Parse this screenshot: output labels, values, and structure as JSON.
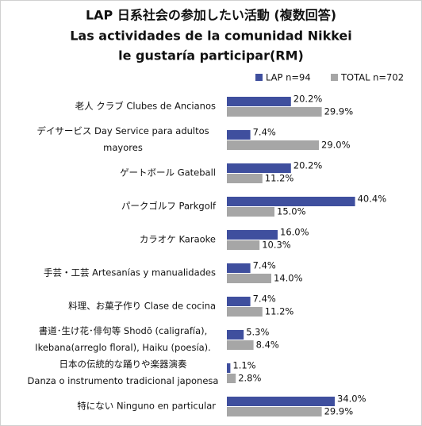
{
  "chart_data": {
    "type": "hbar",
    "title": "LAP 日系社会の参加したい活動 (複数回答)",
    "subtitle": [
      "Las actividades de la comunidad Nikkei",
      "le gustaría participar(RM)"
    ],
    "categories": [
      [
        "老人 クラブ Clubes de Ancianos"
      ],
      [
        "デイサービス Day Service para adultos",
        "mayores"
      ],
      [
        "ゲートボール Gateball"
      ],
      [
        "パークゴルフ Parkgolf"
      ],
      [
        "カラオケ Karaoke"
      ],
      [
        "手芸・工芸 Artesanías y manualidades"
      ],
      [
        "料理、お菓子作り Clase de cocina"
      ],
      [
        "書道･生け花･俳句等 Shodō (caligrafía),",
        "Ikebana(arreglo floral), Haiku (poesía)."
      ],
      [
        "日本の伝統的な踊りや楽器演奏",
        "Danza o instrumento tradicional japonesa"
      ],
      [
        "特にない Ninguno en particular"
      ]
    ],
    "series": [
      {
        "name": "LAP n=94",
        "color": "#3f4f9e",
        "values": [
          20.2,
          7.4,
          20.2,
          40.4,
          16.0,
          7.4,
          7.4,
          5.3,
          1.1,
          34.0
        ],
        "value_labels": [
          "20.2%",
          "7.4%",
          "20.2%",
          "40.4%",
          "16.0%",
          "7.4%",
          "7.4%",
          "5.3%",
          "1.1%",
          "34.0%"
        ]
      },
      {
        "name": "TOTAL n=702",
        "color": "#a6a6a6",
        "values": [
          29.9,
          29.0,
          11.2,
          15.0,
          10.3,
          14.0,
          11.2,
          8.4,
          2.8,
          29.9
        ],
        "value_labels": [
          "29.9%",
          "29.0%",
          "11.2%",
          "15.0%",
          "10.3%",
          "14.0%",
          "11.2%",
          "8.4%",
          "2.8%",
          "29.9%"
        ]
      }
    ],
    "legend": "top-right"
  }
}
